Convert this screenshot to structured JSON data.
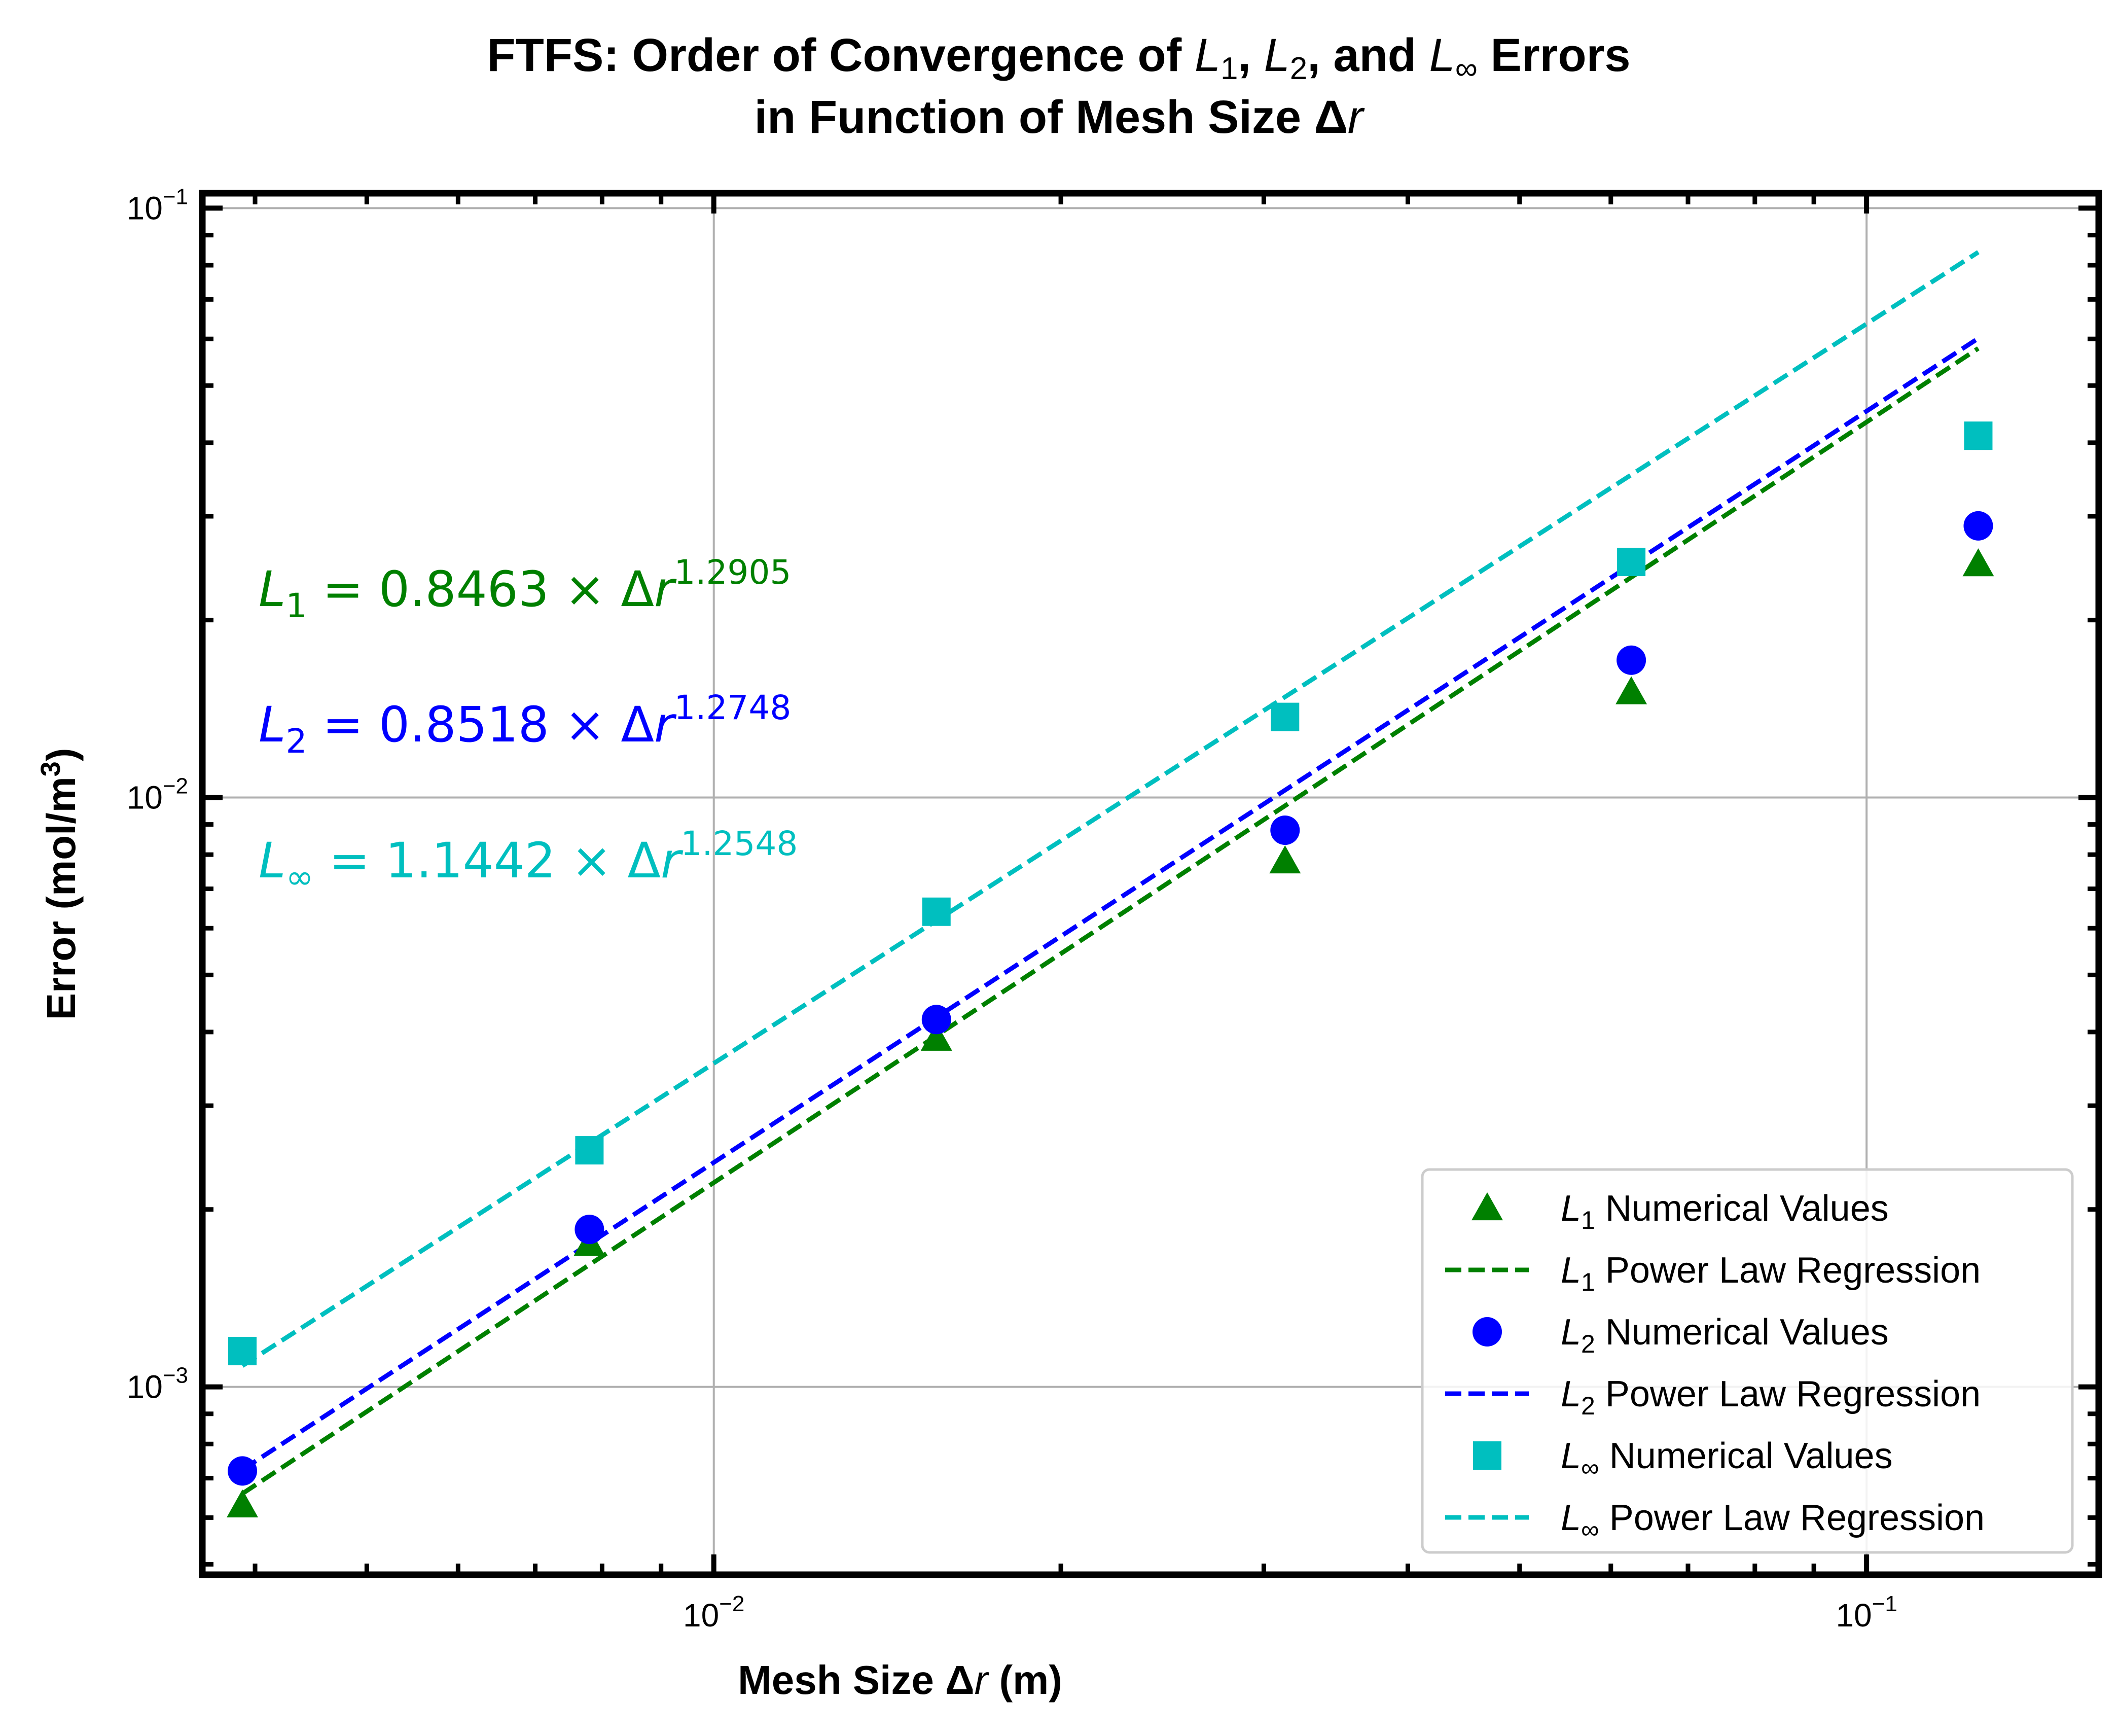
{
  "title": {
    "line1_prefix": "FTFS: Order of Convergence of ",
    "line1_l1": "L",
    "line1_l1_sub": "1",
    "line1_sep1": ", ",
    "line1_l2": "L",
    "line1_l2_sub": "2",
    "line1_sep2": ", and ",
    "line1_linf": "L",
    "line1_linf_sub": "∞",
    "line1_suffix": " Errors",
    "line2_prefix": "in Function of Mesh Size Δ",
    "line2_var": "r"
  },
  "xaxis": {
    "label_prefix": "Mesh Size Δ",
    "label_var": "r",
    "label_suffix": " (m)",
    "ticks": [
      {
        "value": 0.01,
        "base": "10",
        "exp": "−2"
      },
      {
        "value": 0.1,
        "base": "10",
        "exp": "−1"
      }
    ]
  },
  "yaxis": {
    "label": "Error (mol/m",
    "label_sup": "3",
    "label_end": ")",
    "ticks": [
      {
        "value": 0.001,
        "base": "10",
        "exp": "−3"
      },
      {
        "value": 0.01,
        "base": "10",
        "exp": "−2"
      },
      {
        "value": 0.1,
        "base": "10",
        "exp": "−1"
      }
    ]
  },
  "equations": [
    {
      "sym": "L",
      "sub": "1",
      "rest": " = 0.8463 × Δ",
      "var": "r",
      "exp": "1.2905",
      "color": "#008000"
    },
    {
      "sym": "L",
      "sub": "2",
      "rest": " = 0.8518 × Δ",
      "var": "r",
      "exp": "1.2748",
      "color": "#0000ff"
    },
    {
      "sym": "L",
      "sub": "∞",
      "rest": " = 1.1442 × Δ",
      "var": "r",
      "exp": "1.2548",
      "color": "#00bfbf"
    }
  ],
  "legend": [
    {
      "kind": "triangle",
      "sym": "L",
      "sub": "1",
      "text": " Numerical Values",
      "color": "#008000"
    },
    {
      "kind": "dashed",
      "sym": "L",
      "sub": "1",
      "text": " Power Law Regression",
      "color": "#008000"
    },
    {
      "kind": "circle",
      "sym": "L",
      "sub": "2",
      "text": " Numerical Values",
      "color": "#0000ff"
    },
    {
      "kind": "dashed",
      "sym": "L",
      "sub": "2",
      "text": " Power Law Regression",
      "color": "#0000ff"
    },
    {
      "kind": "square",
      "sym": "L",
      "sub": "∞",
      "text": " Numerical Values",
      "color": "#00bfbf"
    },
    {
      "kind": "dashed",
      "sym": "L",
      "sub": "∞",
      "text": " Power Law Regression",
      "color": "#00bfbf"
    }
  ],
  "chart_data": {
    "type": "scatter",
    "xscale": "log",
    "yscale": "log",
    "xlim": [
      0.0036,
      0.159
    ],
    "ylim": [
      0.00048,
      0.106
    ],
    "grid": true,
    "legend_position": "lower-right",
    "x": [
      0.0039,
      0.0078,
      0.0156,
      0.0313,
      0.0625,
      0.125
    ],
    "series": [
      {
        "name": "L1 Numerical Values",
        "marker": "triangle",
        "color": "#008000",
        "values": [
          0.00063,
          0.00175,
          0.0039,
          0.0078,
          0.0151,
          0.0249
        ]
      },
      {
        "name": "L2 Numerical Values",
        "marker": "circle",
        "color": "#0000ff",
        "values": [
          0.00072,
          0.00185,
          0.0042,
          0.0088,
          0.0171,
          0.0289
        ]
      },
      {
        "name": "L∞ Numerical Values",
        "marker": "square",
        "color": "#00bfbf",
        "values": [
          0.00115,
          0.00252,
          0.0064,
          0.0137,
          0.0251,
          0.0411
        ]
      },
      {
        "name": "L1 Power Law Regression",
        "type": "line",
        "dash": true,
        "color": "#008000",
        "coef": 0.8463,
        "exponent": 1.2905
      },
      {
        "name": "L2 Power Law Regression",
        "type": "line",
        "dash": true,
        "color": "#0000ff",
        "coef": 0.8518,
        "exponent": 1.2748
      },
      {
        "name": "L∞ Power Law Regression",
        "type": "line",
        "dash": true,
        "color": "#00bfbf",
        "coef": 1.1442,
        "exponent": 1.2548
      }
    ]
  }
}
